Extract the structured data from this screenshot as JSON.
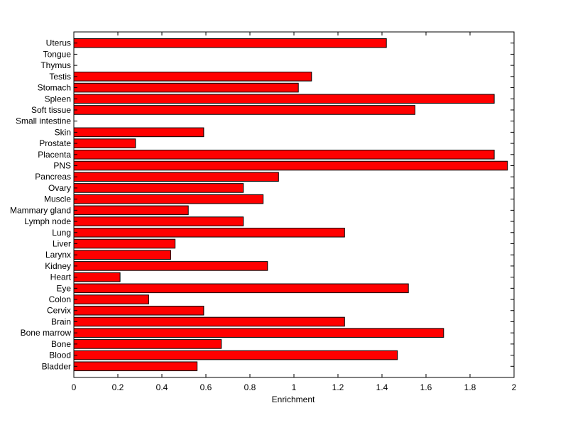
{
  "chart_data": {
    "type": "bar",
    "orientation": "horizontal",
    "title": "",
    "xlabel": "Enrichment",
    "ylabel": "",
    "xlim": [
      0,
      2
    ],
    "xticks": [
      "0",
      "0.2",
      "0.4",
      "0.6",
      "0.8",
      "1",
      "1.2",
      "1.4",
      "1.6",
      "1.8",
      "2"
    ],
    "grid": false,
    "bar_color": "#ff0000",
    "edge_color": "#000000",
    "categories": [
      "Bladder",
      "Blood",
      "Bone",
      "Bone marrow",
      "Brain",
      "Cervix",
      "Colon",
      "Eye",
      "Heart",
      "Kidney",
      "Larynx",
      "Liver",
      "Lung",
      "Lymph node",
      "Mammary gland",
      "Muscle",
      "Ovary",
      "Pancreas",
      "PNS",
      "Placenta",
      "Prostate",
      "Skin",
      "Small intestine",
      "Soft tissue",
      "Spleen",
      "Stomach",
      "Testis",
      "Thymus",
      "Tongue",
      "Uterus"
    ],
    "values": [
      0.56,
      1.47,
      0.67,
      1.68,
      1.23,
      0.59,
      0.34,
      1.52,
      0.21,
      0.88,
      0.44,
      0.46,
      1.23,
      0.77,
      0.52,
      0.86,
      0.77,
      0.93,
      1.97,
      1.91,
      0.28,
      0.59,
      0,
      1.55,
      1.91,
      1.02,
      1.08,
      0,
      0,
      1.42
    ]
  }
}
